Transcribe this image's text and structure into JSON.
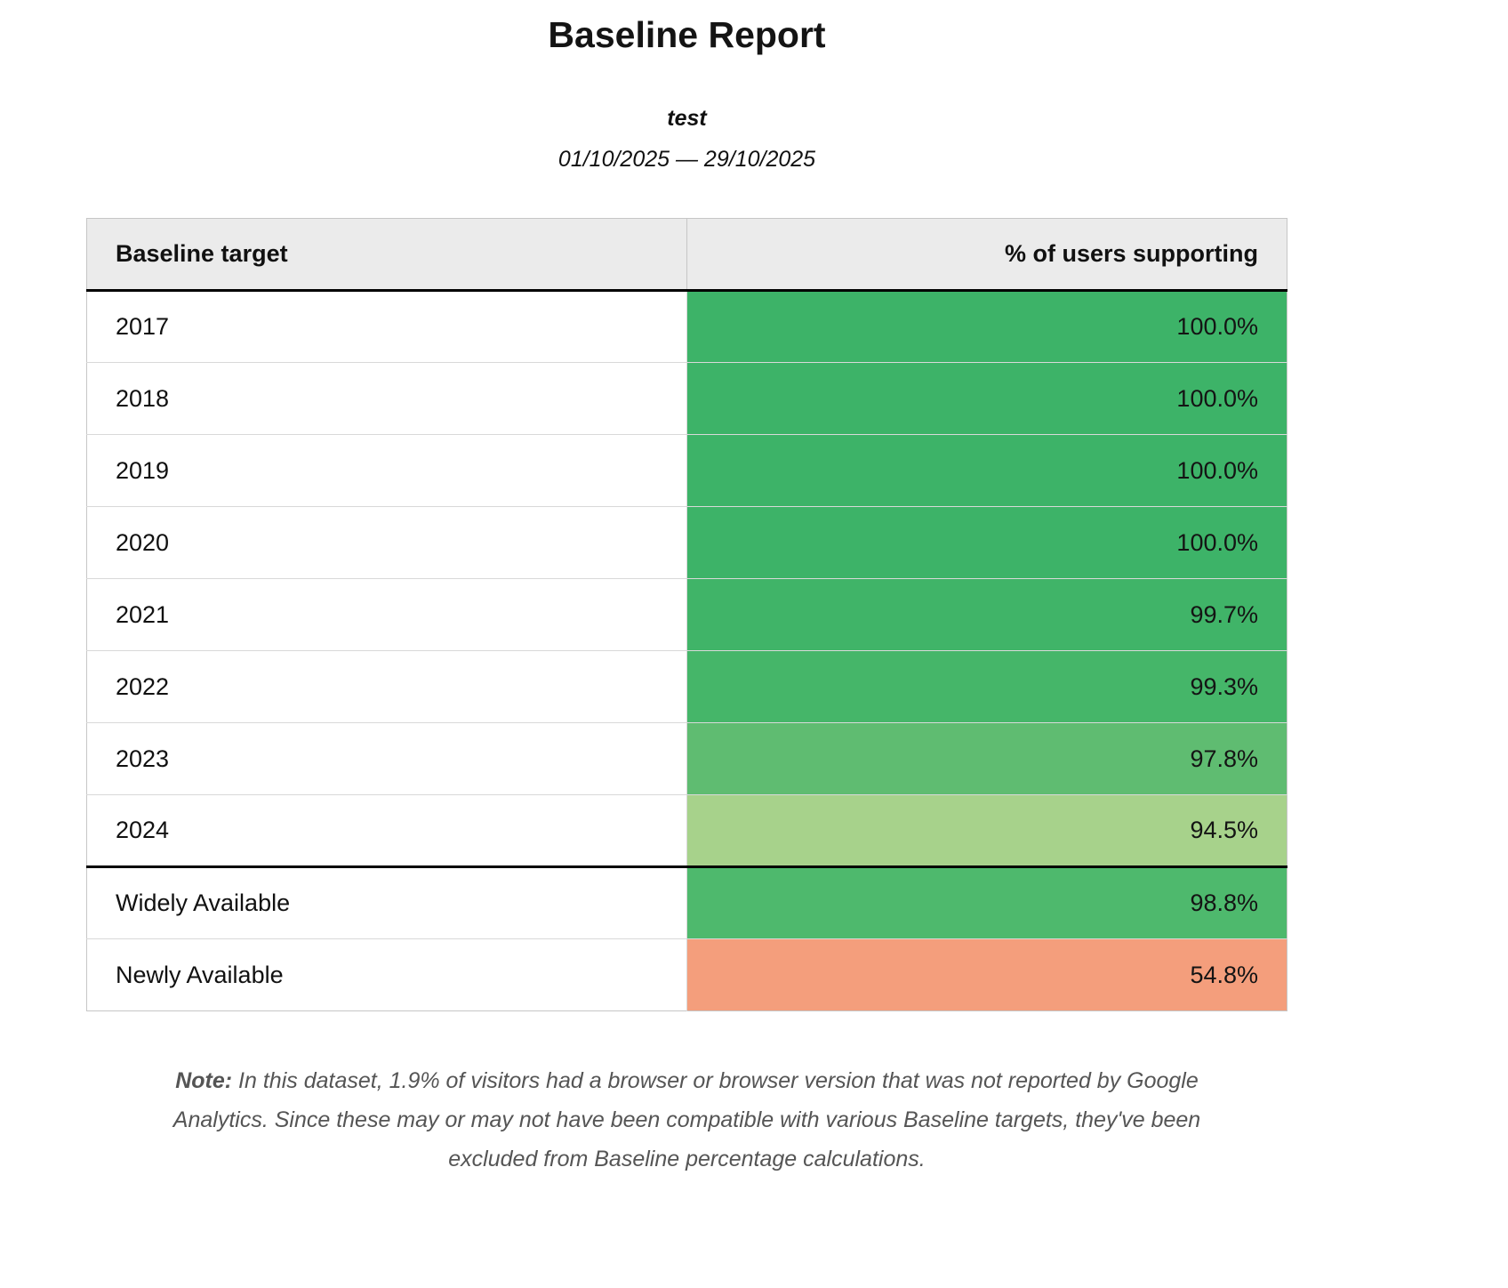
{
  "page": {
    "title": "Baseline Report",
    "subtitle": "test",
    "date_range": "01/10/2025 — 29/10/2025"
  },
  "table": {
    "header": {
      "target": "Baseline target",
      "support": "% of users supporting"
    },
    "rows": [
      {
        "label": "2017",
        "value": "100.0%",
        "color": "#3db368",
        "divider_above": false
      },
      {
        "label": "2018",
        "value": "100.0%",
        "color": "#3db368",
        "divider_above": false
      },
      {
        "label": "2019",
        "value": "100.0%",
        "color": "#3db368",
        "divider_above": false
      },
      {
        "label": "2020",
        "value": "100.0%",
        "color": "#3db368",
        "divider_above": false
      },
      {
        "label": "2021",
        "value": "99.7%",
        "color": "#40b468",
        "divider_above": false
      },
      {
        "label": "2022",
        "value": "99.3%",
        "color": "#45b669",
        "divider_above": false
      },
      {
        "label": "2023",
        "value": "97.8%",
        "color": "#5fbc71",
        "divider_above": false
      },
      {
        "label": "2024",
        "value": "94.5%",
        "color": "#a7d28b",
        "divider_above": false
      },
      {
        "label": "Widely Available",
        "value": "98.8%",
        "color": "#4eb96d",
        "divider_above": true
      },
      {
        "label": "Newly Available",
        "value": "54.8%",
        "color": "#f49e7c",
        "divider_above": false
      }
    ]
  },
  "note": {
    "label": "Note:",
    "text": " In this dataset, 1.9% of visitors had a browser or browser version that was not reported by Google Analytics. Since these may or may not have been compatible with various Baseline targets, they've been excluded from Baseline percentage calculations."
  },
  "colors": {
    "header_background": "#ebebeb",
    "divider": "#000000",
    "note_text": "#555555"
  },
  "chart_data": {
    "type": "table",
    "title": "Baseline Report",
    "subtitle": "test",
    "date_range": "01/10/2025 — 29/10/2025",
    "columns": [
      "Baseline target",
      "% of users supporting"
    ],
    "rows": [
      [
        "2017",
        100.0
      ],
      [
        "2018",
        100.0
      ],
      [
        "2019",
        100.0
      ],
      [
        "2020",
        100.0
      ],
      [
        "2021",
        99.7
      ],
      [
        "2022",
        99.3
      ],
      [
        "2023",
        97.8
      ],
      [
        "2024",
        94.5
      ],
      [
        "Widely Available",
        98.8
      ],
      [
        "Newly Available",
        54.8
      ]
    ],
    "value_unit": "%",
    "color_coding": "green = high support, light green = lower, salmon = low"
  }
}
